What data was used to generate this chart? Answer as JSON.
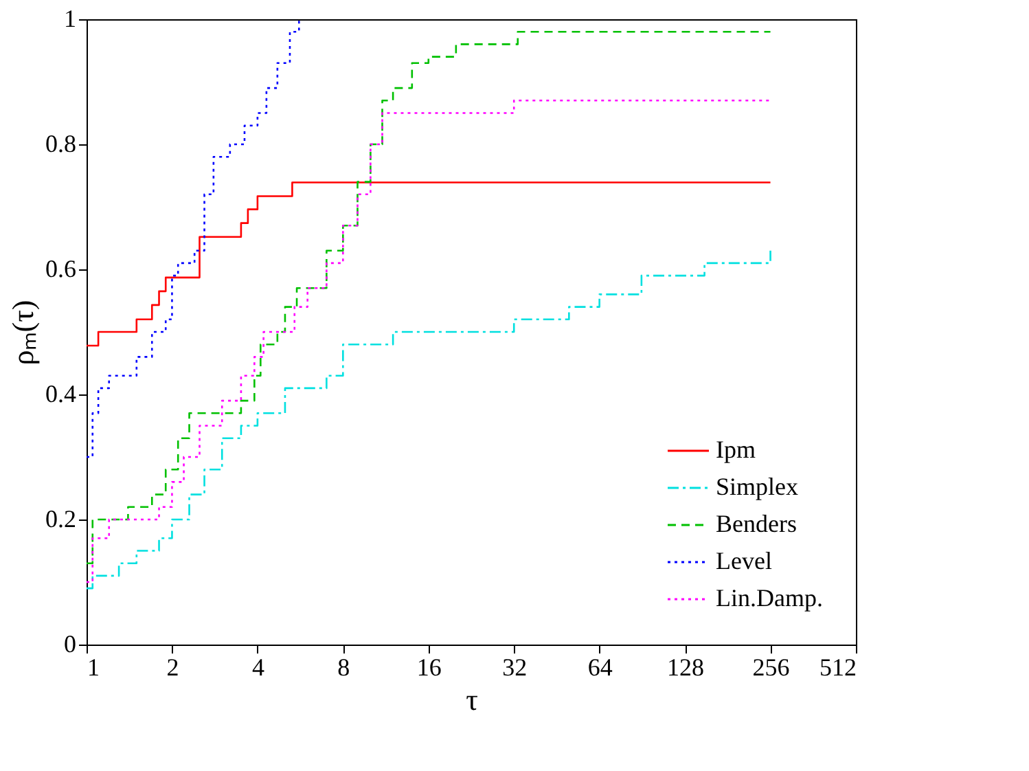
{
  "chart_data": {
    "type": "step",
    "xlabel": "τ",
    "ylabel": "ρₘ(τ)",
    "xlim": [
      1,
      512
    ],
    "xticks": [
      1,
      2,
      4,
      8,
      16,
      32,
      64,
      128,
      256,
      512
    ],
    "log": "x",
    "ylim": [
      0,
      1
    ],
    "yticks": [
      0,
      0.2,
      0.4,
      0.6,
      0.8,
      1
    ],
    "grid": false,
    "legend": "bottom right",
    "series": [
      {
        "name": "Ipm",
        "color": "#ff0000",
        "line_style": "solid",
        "x": [
          1,
          1.1,
          1.5,
          1.7,
          1.8,
          1.9,
          2.5,
          3.5,
          3.7,
          4,
          5.3,
          256
        ],
        "values": [
          0.478,
          0.5,
          0.52,
          0.543,
          0.565,
          0.587,
          0.652,
          0.674,
          0.696,
          0.717,
          0.739,
          0.739
        ]
      },
      {
        "name": "Simplex",
        "color": "#00e0e0",
        "line_style": "dashdot",
        "x": [
          1,
          1.05,
          1.3,
          1.5,
          1.8,
          2,
          2.3,
          2.6,
          3,
          3.5,
          4,
          5,
          6,
          7,
          8,
          10,
          12,
          20,
          32,
          50,
          64,
          90,
          150,
          256
        ],
        "values": [
          0.09,
          0.11,
          0.13,
          0.15,
          0.17,
          0.2,
          0.24,
          0.28,
          0.33,
          0.35,
          0.37,
          0.41,
          0.41,
          0.43,
          0.48,
          0.48,
          0.5,
          0.5,
          0.52,
          0.54,
          0.56,
          0.59,
          0.61,
          0.63
        ]
      },
      {
        "name": "Benders",
        "color": "#00c000",
        "line_style": "dashed",
        "x": [
          1,
          1.05,
          1.3,
          1.4,
          1.7,
          1.9,
          2.1,
          2.3,
          3,
          3.5,
          3.9,
          4.1,
          4.7,
          5,
          5.5,
          6,
          7,
          8,
          9,
          10,
          11,
          12,
          14,
          16,
          20,
          32,
          33,
          256
        ],
        "values": [
          0.13,
          0.2,
          0.2,
          0.22,
          0.24,
          0.28,
          0.33,
          0.37,
          0.37,
          0.39,
          0.43,
          0.48,
          0.5,
          0.54,
          0.57,
          0.57,
          0.63,
          0.67,
          0.74,
          0.8,
          0.87,
          0.89,
          0.93,
          0.94,
          0.96,
          0.96,
          0.98,
          0.98
        ]
      },
      {
        "name": "Level",
        "color": "#0000ff",
        "line_style": "dotted",
        "x": [
          1,
          1.05,
          1.1,
          1.2,
          1.35,
          1.5,
          1.7,
          1.9,
          2.0,
          2.1,
          2.4,
          2.6,
          2.8,
          3.2,
          3.6,
          4.0,
          4.3,
          4.7,
          5.2,
          5.6
        ],
        "values": [
          0.3,
          0.37,
          0.41,
          0.43,
          0.43,
          0.46,
          0.5,
          0.52,
          0.59,
          0.61,
          0.63,
          0.72,
          0.78,
          0.8,
          0.83,
          0.85,
          0.89,
          0.93,
          0.98,
          1.0
        ]
      },
      {
        "name": "Lin.Damp.",
        "color": "#ff00ff",
        "line_style": "dotted",
        "x": [
          1,
          1.05,
          1.2,
          1.6,
          1.8,
          2,
          2.2,
          2.5,
          3,
          3.5,
          3.9,
          4.2,
          5,
          5.4,
          6,
          7,
          8,
          9,
          10,
          11,
          30,
          32,
          256
        ],
        "values": [
          0.1,
          0.17,
          0.2,
          0.2,
          0.22,
          0.26,
          0.3,
          0.35,
          0.39,
          0.43,
          0.46,
          0.5,
          0.5,
          0.54,
          0.57,
          0.61,
          0.67,
          0.72,
          0.8,
          0.85,
          0.85,
          0.87,
          0.87
        ]
      }
    ]
  }
}
